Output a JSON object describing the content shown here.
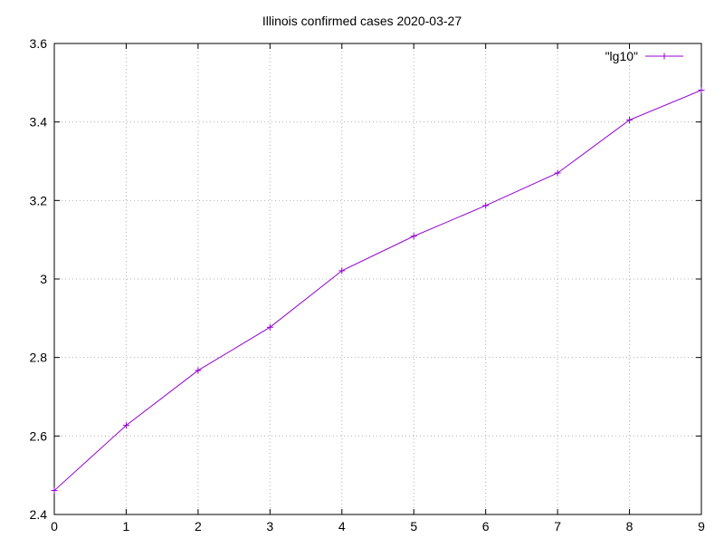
{
  "chart_data": {
    "type": "line",
    "title": "Illinois confirmed cases 2020-03-27",
    "xlabel": "",
    "ylabel": "",
    "xlim": [
      0,
      9
    ],
    "ylim": [
      2.4,
      3.6
    ],
    "grid": true,
    "legend_position": "top-right",
    "x_ticks": [
      "0",
      "1",
      "2",
      "3",
      "4",
      "5",
      "6",
      "7",
      "8",
      "9"
    ],
    "y_ticks": [
      "2.4",
      "2.6",
      "2.8",
      "3",
      "3.2",
      "3.4",
      "3.6"
    ],
    "series": [
      {
        "name": "\"lg10\"",
        "color": "#9400d3",
        "marker": "plus",
        "x": [
          0,
          1,
          2,
          3,
          4,
          5,
          6,
          7,
          8,
          9
        ],
        "values": [
          2.461,
          2.627,
          2.767,
          2.877,
          3.021,
          3.109,
          3.187,
          3.27,
          3.405,
          3.481
        ]
      }
    ]
  }
}
